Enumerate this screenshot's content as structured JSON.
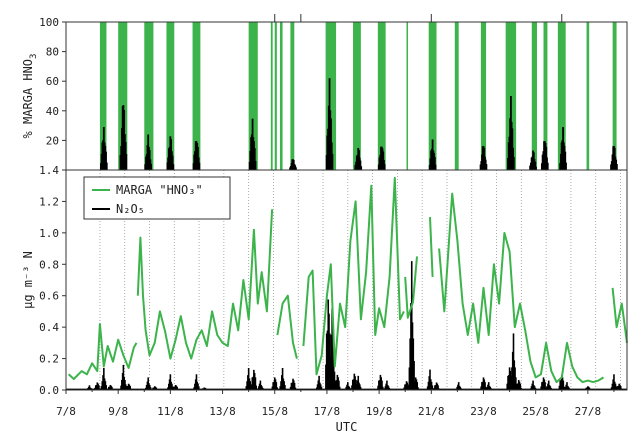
{
  "chart_data": [
    {
      "type": "bar",
      "panel": "top",
      "ylabel_main": "% MARGA HNO",
      "ylabel_sub": "3",
      "ylim": [
        0,
        100
      ],
      "yticks": [
        20,
        40,
        60,
        80,
        100
      ],
      "green_color": "#3cb44b",
      "bar_color": "#000000",
      "green_bands": [
        [
          8.3,
          8.55
        ],
        [
          9.0,
          9.35
        ],
        [
          10.0,
          10.35
        ],
        [
          10.85,
          11.15
        ],
        [
          11.85,
          12.15
        ],
        [
          14.0,
          14.35
        ],
        [
          14.85,
          14.92
        ],
        [
          15.0,
          15.08
        ],
        [
          15.2,
          15.3
        ],
        [
          15.6,
          15.75
        ],
        [
          16.95,
          17.35
        ],
        [
          18.0,
          18.3
        ],
        [
          18.95,
          19.25
        ],
        [
          20.05,
          20.1
        ],
        [
          20.9,
          21.2
        ],
        [
          21.9,
          22.05
        ],
        [
          22.9,
          23.1
        ],
        [
          23.85,
          24.25
        ],
        [
          24.85,
          25.05
        ],
        [
          25.3,
          25.45
        ],
        [
          25.85,
          26.15
        ],
        [
          26.95,
          27.05
        ],
        [
          27.95,
          28.1
        ]
      ],
      "black_peaks": [
        [
          8.45,
          31
        ],
        [
          9.2,
          54
        ],
        [
          10.15,
          24
        ],
        [
          11.0,
          26
        ],
        [
          12.0,
          26
        ],
        [
          14.15,
          37
        ],
        [
          15.7,
          9
        ],
        [
          17.1,
          62
        ],
        [
          18.2,
          17
        ],
        [
          19.1,
          21
        ],
        [
          21.05,
          22
        ],
        [
          23.0,
          20
        ],
        [
          24.05,
          50
        ],
        [
          24.9,
          15
        ],
        [
          25.35,
          26
        ],
        [
          26.05,
          31
        ],
        [
          28.0,
          20
        ]
      ]
    },
    {
      "type": "line",
      "panel": "bottom",
      "ylabel": "µg m⁻³ N",
      "xlabel": "UTC",
      "ylim": [
        0,
        1.4
      ],
      "yticks": [
        "0.0",
        "0.2",
        "0.4",
        "0.6",
        "0.8",
        "1.0",
        "1.2",
        "1.4"
      ],
      "xticks": [
        "7/8",
        "9/8",
        "11/8",
        "13/8",
        "15/8",
        "17/8",
        "19/8",
        "21/8",
        "23/8",
        "25/8",
        "27/8"
      ],
      "xlim": [
        7,
        28.5
      ],
      "legend_position": "top-left",
      "series": [
        {
          "name": "MARGA \"HNO₃\"",
          "color": "#3cb44b",
          "segments": [
            [
              [
                7.1,
                0.1
              ],
              [
                7.3,
                0.07
              ],
              [
                7.6,
                0.12
              ],
              [
                7.8,
                0.1
              ],
              [
                8.0,
                0.17
              ],
              [
                8.2,
                0.12
              ],
              [
                8.3,
                0.42
              ],
              [
                8.45,
                0.15
              ],
              [
                8.6,
                0.28
              ],
              [
                8.8,
                0.18
              ],
              [
                9.0,
                0.32
              ],
              [
                9.2,
                0.22
              ],
              [
                9.4,
                0.14
              ],
              [
                9.6,
                0.27
              ],
              [
                9.7,
                0.3
              ]
            ],
            [
              [
                9.75,
                0.6
              ],
              [
                9.85,
                0.97
              ],
              [
                9.95,
                0.6
              ],
              [
                10.05,
                0.38
              ],
              [
                10.2,
                0.22
              ],
              [
                10.4,
                0.3
              ],
              [
                10.6,
                0.5
              ],
              [
                10.8,
                0.37
              ],
              [
                11.0,
                0.2
              ],
              [
                11.2,
                0.32
              ],
              [
                11.4,
                0.47
              ],
              [
                11.6,
                0.3
              ],
              [
                11.8,
                0.2
              ],
              [
                12.0,
                0.32
              ],
              [
                12.2,
                0.38
              ],
              [
                12.4,
                0.28
              ],
              [
                12.6,
                0.5
              ],
              [
                12.8,
                0.35
              ],
              [
                13.0,
                0.3
              ],
              [
                13.2,
                0.28
              ],
              [
                13.4,
                0.55
              ],
              [
                13.6,
                0.38
              ],
              [
                13.8,
                0.7
              ],
              [
                14.0,
                0.45
              ],
              [
                14.2,
                1.02
              ],
              [
                14.35,
                0.55
              ],
              [
                14.5,
                0.75
              ],
              [
                14.7,
                0.5
              ],
              [
                14.9,
                1.15
              ]
            ],
            [
              [
                15.1,
                0.35
              ],
              [
                15.3,
                0.55
              ],
              [
                15.5,
                0.6
              ],
              [
                15.7,
                0.3
              ],
              [
                15.85,
                0.2
              ]
            ],
            [
              [
                16.1,
                0.28
              ],
              [
                16.3,
                0.72
              ],
              [
                16.45,
                0.76
              ],
              [
                16.6,
                0.1
              ],
              [
                16.8,
                0.22
              ],
              [
                17.0,
                0.6
              ],
              [
                17.15,
                0.8
              ],
              [
                17.3,
                0.15
              ],
              [
                17.5,
                0.55
              ],
              [
                17.7,
                0.4
              ],
              [
                17.9,
                0.95
              ],
              [
                18.1,
                1.2
              ],
              [
                18.3,
                0.45
              ],
              [
                18.5,
                0.75
              ],
              [
                18.7,
                1.3
              ],
              [
                18.85,
                0.35
              ],
              [
                19.0,
                0.52
              ],
              [
                19.2,
                0.4
              ],
              [
                19.4,
                0.72
              ],
              [
                19.6,
                1.35
              ],
              [
                19.8,
                0.45
              ],
              [
                19.95,
                0.5
              ]
            ],
            [
              [
                20.0,
                0.72
              ],
              [
                20.1,
                0.46
              ],
              [
                20.3,
                0.56
              ],
              [
                20.45,
                0.85
              ]
            ],
            [
              [
                20.95,
                1.1
              ],
              [
                21.05,
                0.72
              ]
            ],
            [
              [
                21.3,
                0.9
              ],
              [
                21.5,
                0.5
              ],
              [
                21.8,
                1.25
              ],
              [
                22.0,
                0.95
              ],
              [
                22.2,
                0.55
              ],
              [
                22.4,
                0.35
              ],
              [
                22.6,
                0.55
              ],
              [
                22.8,
                0.3
              ],
              [
                23.0,
                0.65
              ],
              [
                23.2,
                0.35
              ],
              [
                23.4,
                0.8
              ],
              [
                23.6,
                0.55
              ],
              [
                23.8,
                1.0
              ],
              [
                24.0,
                0.88
              ],
              [
                24.2,
                0.4
              ],
              [
                24.4,
                0.55
              ],
              [
                24.6,
                0.38
              ],
              [
                24.8,
                0.18
              ],
              [
                25.0,
                0.08
              ],
              [
                25.2,
                0.1
              ],
              [
                25.4,
                0.3
              ],
              [
                25.6,
                0.12
              ],
              [
                25.8,
                0.05
              ],
              [
                26.0,
                0.08
              ],
              [
                26.2,
                0.3
              ],
              [
                26.4,
                0.15
              ],
              [
                26.6,
                0.08
              ],
              [
                26.8,
                0.05
              ],
              [
                27.0,
                0.06
              ],
              [
                27.2,
                0.05
              ],
              [
                27.4,
                0.06
              ],
              [
                27.6,
                0.08
              ]
            ],
            [
              [
                27.95,
                0.65
              ],
              [
                28.1,
                0.4
              ],
              [
                28.3,
                0.55
              ],
              [
                28.5,
                0.3
              ]
            ]
          ]
        },
        {
          "name": "N₂O₅",
          "color": "#000000",
          "peaks": [
            [
              7.9,
              0.03
            ],
            [
              8.2,
              0.06
            ],
            [
              8.45,
              0.14
            ],
            [
              8.7,
              0.04
            ],
            [
              9.2,
              0.16
            ],
            [
              9.4,
              0.05
            ],
            [
              10.15,
              0.08
            ],
            [
              10.4,
              0.03
            ],
            [
              11.0,
              0.1
            ],
            [
              11.2,
              0.04
            ],
            [
              12.0,
              0.1
            ],
            [
              12.3,
              0.02
            ],
            [
              14.0,
              0.14
            ],
            [
              14.2,
              0.16
            ],
            [
              14.45,
              0.06
            ],
            [
              15.0,
              0.1
            ],
            [
              15.3,
              0.14
            ],
            [
              15.7,
              0.09
            ],
            [
              16.7,
              0.09
            ],
            [
              17.05,
              0.72
            ],
            [
              17.2,
              0.52
            ],
            [
              17.4,
              0.12
            ],
            [
              17.8,
              0.05
            ],
            [
              18.05,
              0.13
            ],
            [
              18.2,
              0.09
            ],
            [
              19.05,
              0.12
            ],
            [
              19.3,
              0.06
            ],
            [
              20.05,
              0.07
            ],
            [
              20.25,
              0.82
            ],
            [
              20.4,
              0.1
            ],
            [
              20.95,
              0.13
            ],
            [
              21.2,
              0.06
            ],
            [
              22.05,
              0.05
            ],
            [
              23.0,
              0.1
            ],
            [
              23.2,
              0.05
            ],
            [
              24.0,
              0.18
            ],
            [
              24.15,
              0.36
            ],
            [
              24.35,
              0.08
            ],
            [
              24.9,
              0.06
            ],
            [
              25.3,
              0.1
            ],
            [
              25.5,
              0.06
            ],
            [
              26.0,
              0.12
            ],
            [
              26.2,
              0.05
            ],
            [
              27.0,
              0.03
            ],
            [
              28.0,
              0.1
            ],
            [
              28.2,
              0.05
            ]
          ]
        }
      ]
    }
  ]
}
